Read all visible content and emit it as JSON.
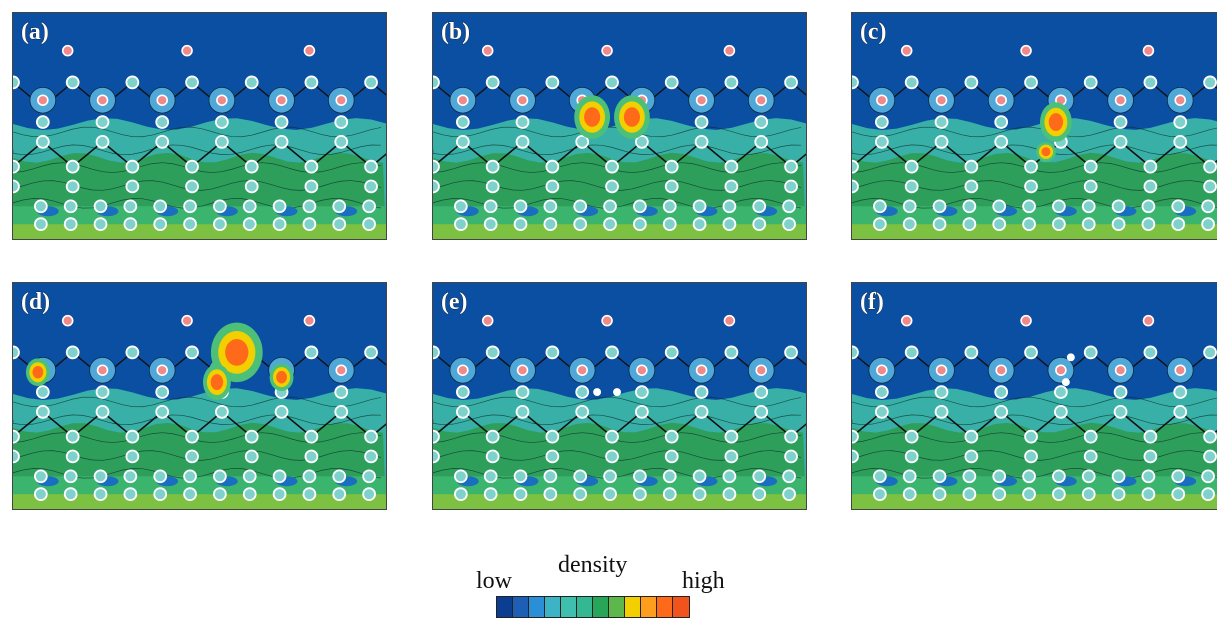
{
  "figure": {
    "panels": [
      {
        "label": "(a)",
        "variant": "a"
      },
      {
        "label": "(b)",
        "variant": "b"
      },
      {
        "label": "(c)",
        "variant": "c"
      },
      {
        "label": "(d)",
        "variant": "d"
      },
      {
        "label": "(e)",
        "variant": "e"
      },
      {
        "label": "(f)",
        "variant": "f"
      }
    ]
  },
  "legend": {
    "low": "low",
    "title": "density",
    "high": "high",
    "colors": [
      "#0b3d91",
      "#1c5fb5",
      "#2a8fd6",
      "#3db4c6",
      "#3fbfae",
      "#34b893",
      "#27a65a",
      "#5cb84a",
      "#f2d000",
      "#ff9d1c",
      "#ff6a1a",
      "#f0541c"
    ]
  },
  "colors": {
    "background_low": "#0b4fa3",
    "surface_mid": "#38b0a8",
    "bulk_green": "#2e9e5b",
    "substrate_green": "#7cc142",
    "atom_fill": "#7fd1cc",
    "adatom_fill": "#f08a8a"
  }
}
